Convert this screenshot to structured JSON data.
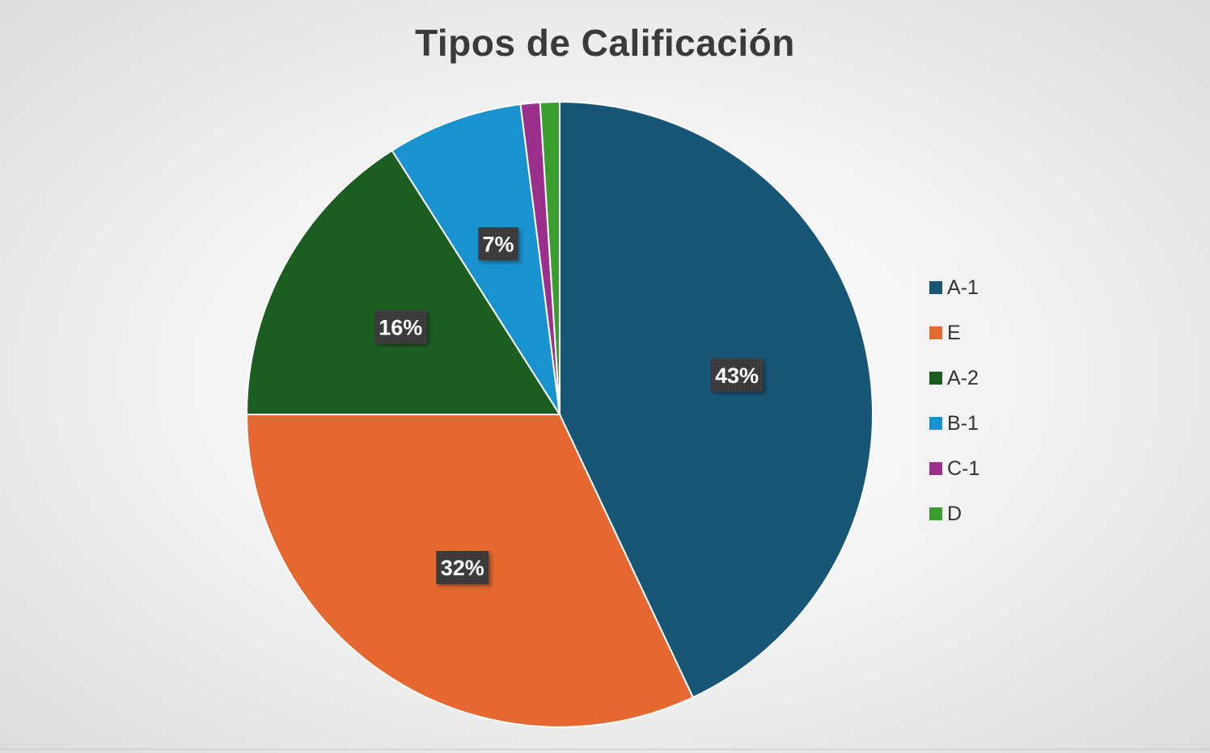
{
  "chart_data": {
    "type": "pie",
    "title": "Tipos de Calificación",
    "categories": [
      "A-1",
      "E",
      "A-2",
      "B-1",
      "C-1",
      "D"
    ],
    "values": [
      43,
      32,
      16,
      7,
      1,
      1
    ],
    "data_labels": [
      "43%",
      "32%",
      "16%",
      "7%",
      "",
      ""
    ],
    "colors": [
      "#185677",
      "#e4682f",
      "#1c5e22",
      "#1893d0",
      "#9a2f8c",
      "#3a9e2f"
    ],
    "legend_position": "right",
    "start_angle_deg": 0,
    "direction": "clockwise"
  }
}
